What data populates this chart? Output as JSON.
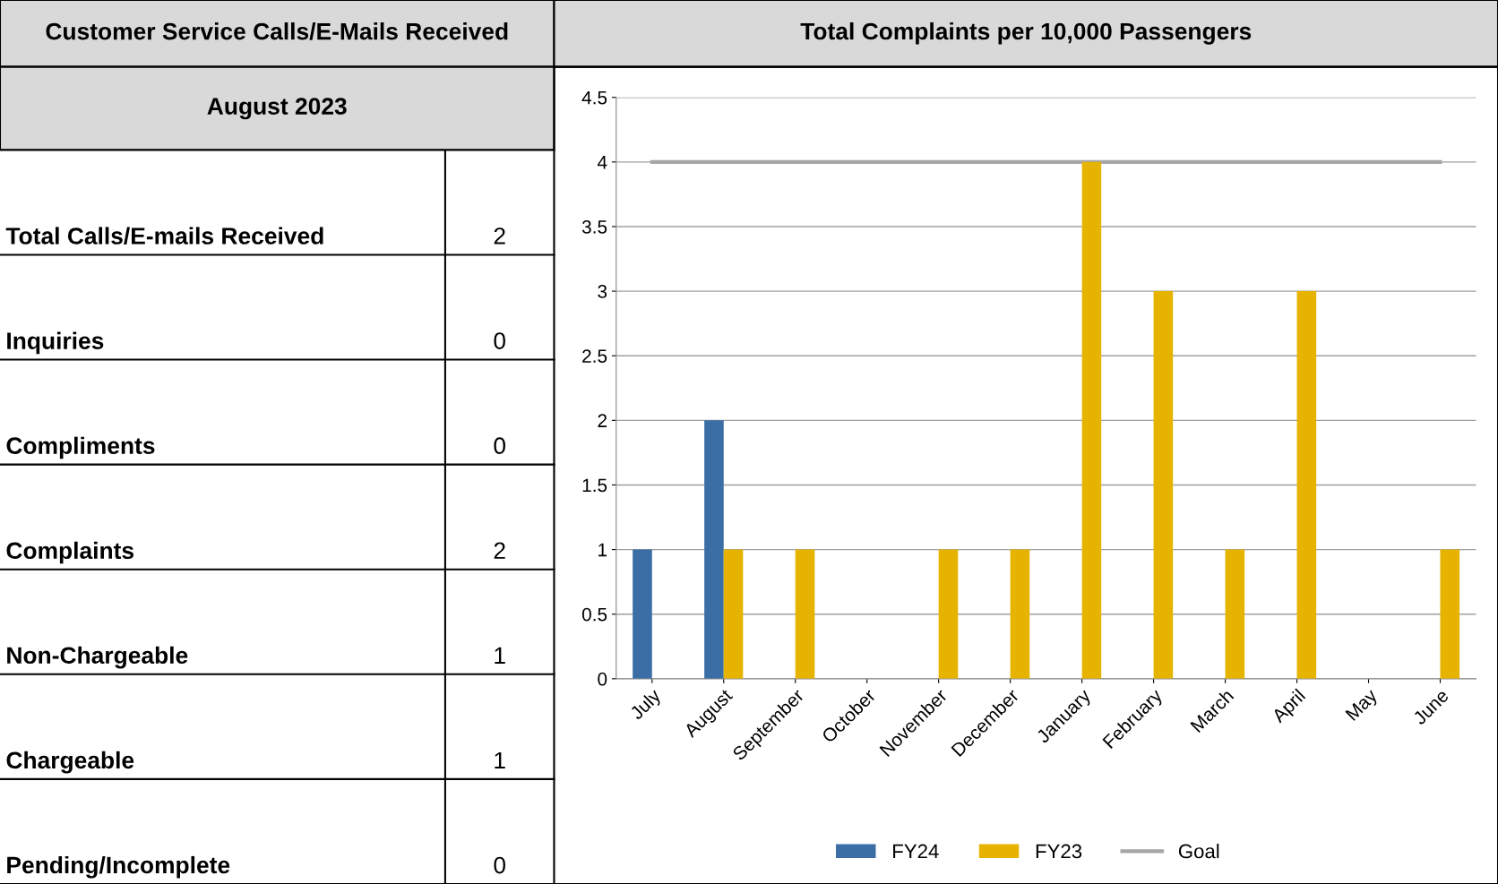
{
  "chart_data": [
    {
      "type": "other",
      "title": "Customer Service Calls/E-Mails Received",
      "subtitle": "August 2023",
      "categories": [
        "Total Calls/E-mails Received",
        "Inquiries",
        "Compliments",
        "Complaints",
        "Non-Chargeable",
        "Chargeable",
        "Pending/Incomplete"
      ],
      "values": [
        2,
        0,
        0,
        2,
        1,
        1,
        0
      ],
      "data_labels": true
    },
    {
      "type": "bar",
      "title": "Total Complaints per 10,000 Passengers",
      "categories": [
        "July",
        "August",
        "September",
        "October",
        "November",
        "December",
        "January",
        "February",
        "March",
        "April",
        "May",
        "June"
      ],
      "series": [
        {
          "name": "FY24",
          "color": "#3a6ea5",
          "values": [
            1,
            2,
            null,
            null,
            null,
            null,
            null,
            null,
            null,
            null,
            null,
            null
          ]
        },
        {
          "name": "FY23",
          "color": "#e6b400",
          "values": [
            null,
            1,
            1,
            null,
            1,
            1,
            4,
            3,
            1,
            3,
            null,
            1
          ]
        },
        {
          "name": "Goal",
          "type": "line",
          "color": "#a6a6a6",
          "values": [
            4,
            4,
            4,
            4,
            4,
            4,
            4,
            4,
            4,
            4,
            4,
            4
          ]
        }
      ],
      "ylim": [
        0,
        4.5
      ],
      "yticks": [
        0,
        0.5,
        1,
        1.5,
        2,
        2.5,
        3,
        3.5,
        4,
        4.5
      ],
      "grid": "y",
      "legend": "bottom"
    }
  ]
}
